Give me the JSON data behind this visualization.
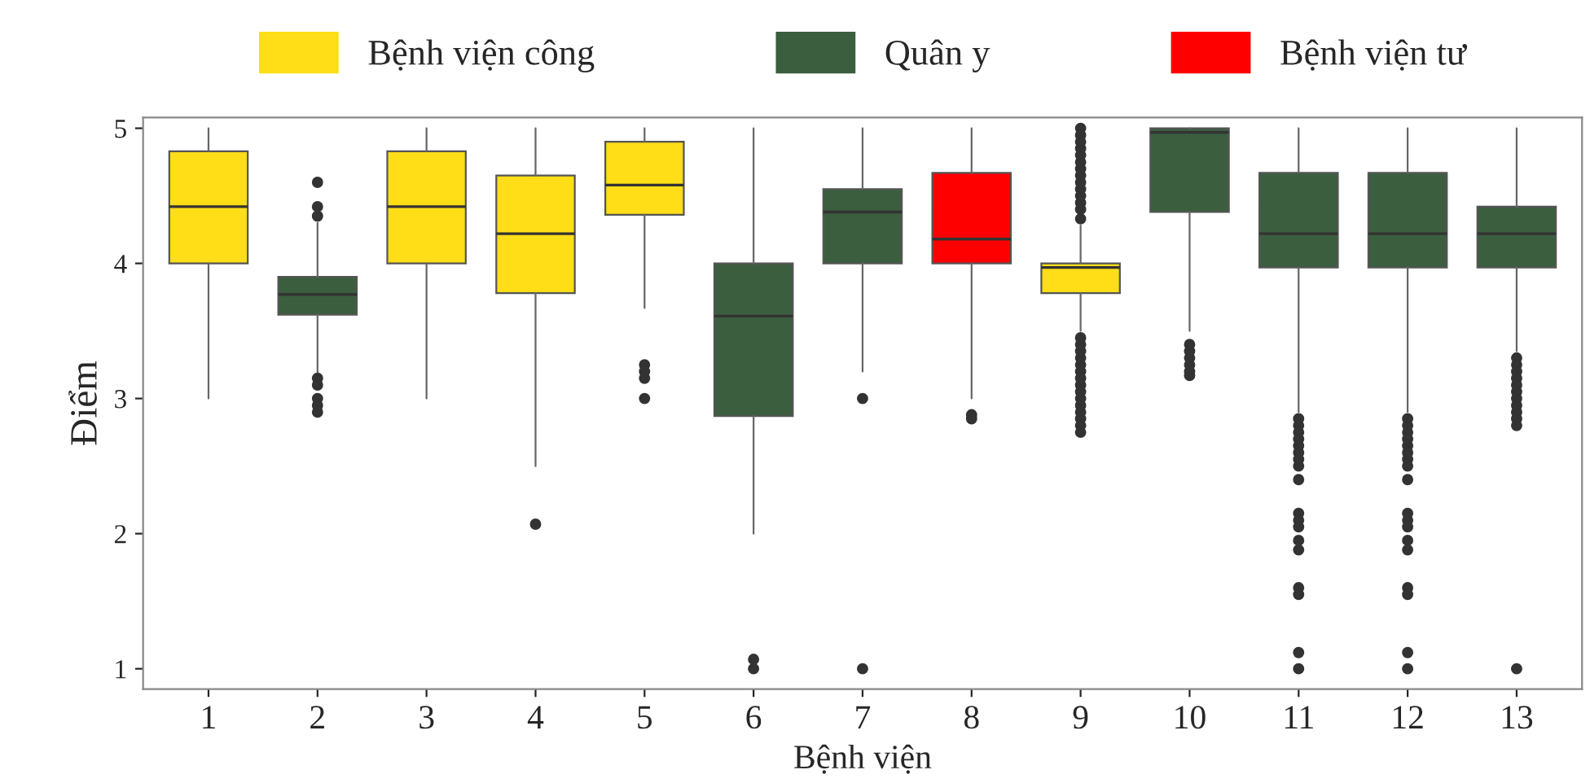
{
  "chart_data": {
    "type": "box",
    "xlabel": "Bệnh viện",
    "ylabel": "Điểm",
    "categories": [
      "1",
      "2",
      "3",
      "4",
      "5",
      "6",
      "7",
      "8",
      "9",
      "10",
      "11",
      "12",
      "13"
    ],
    "ylim": [
      0.85,
      5.08
    ],
    "yticks": [
      1,
      2,
      3,
      4,
      5
    ],
    "grid": false,
    "legend": "top",
    "series": [
      {
        "name": "Bệnh viện công",
        "color": "#ffdd17",
        "boxes": [
          {
            "low": 3.0,
            "q1": 4.0,
            "median": 4.42,
            "q3": 4.83,
            "high": 5.0
          },
          null,
          {
            "low": 3.0,
            "q1": 4.0,
            "median": 4.42,
            "q3": 4.83,
            "high": 5.0
          },
          {
            "low": 2.5,
            "q1": 3.78,
            "median": 4.22,
            "q3": 4.65,
            "high": 5.0,
            "outliers": [
              2.07
            ]
          },
          {
            "low": 3.67,
            "q1": 4.36,
            "median": 4.58,
            "q3": 4.9,
            "high": 5.0,
            "outliers": [
              3.25,
              3.2,
              3.15,
              3.0
            ]
          },
          null,
          null,
          null,
          {
            "low": 3.5,
            "q1": 3.78,
            "median": 3.97,
            "q3": 4.0,
            "high": 4.28,
            "outliers": [
              4.33,
              4.4,
              4.45,
              4.5,
              4.55,
              4.6,
              4.65,
              4.7,
              4.75,
              4.8,
              4.85,
              4.9,
              4.95,
              5.0,
              3.45,
              3.4,
              3.35,
              3.3,
              3.25,
              3.2,
              3.15,
              3.1,
              3.05,
              3.0,
              2.95,
              2.9,
              2.85,
              2.8,
              2.75
            ]
          },
          null,
          null,
          null,
          null
        ]
      },
      {
        "name": "Quân y",
        "color": "#3b5e3f",
        "boxes": [
          null,
          {
            "low": 3.18,
            "q1": 3.62,
            "median": 3.77,
            "q3": 3.9,
            "high": 4.3,
            "outliers": [
              4.35,
              4.42,
              4.6,
              3.15,
              3.1,
              3.0,
              2.95,
              2.9
            ]
          },
          null,
          null,
          null,
          {
            "low": 2.0,
            "q1": 2.87,
            "median": 3.61,
            "q3": 4.0,
            "high": 5.0,
            "outliers": [
              1.07,
              1.0
            ]
          },
          {
            "low": 3.2,
            "q1": 4.0,
            "median": 4.38,
            "q3": 4.55,
            "high": 5.0,
            "outliers": [
              3.0,
              1.0
            ]
          },
          null,
          null,
          {
            "low": 3.5,
            "q1": 4.38,
            "median": 4.97,
            "q3": 5.0,
            "high": 5.0,
            "outliers": [
              3.4,
              3.35,
              3.3,
              3.25,
              3.2,
              3.17
            ]
          },
          {
            "low": 2.9,
            "q1": 3.97,
            "median": 4.22,
            "q3": 4.67,
            "high": 5.0,
            "outliers": [
              2.85,
              2.8,
              2.75,
              2.7,
              2.65,
              2.6,
              2.55,
              2.5,
              2.4,
              2.15,
              2.1,
              2.05,
              1.95,
              1.88,
              1.6,
              1.55,
              1.12,
              1.0
            ]
          },
          {
            "low": 2.9,
            "q1": 3.97,
            "median": 4.22,
            "q3": 4.67,
            "high": 5.0,
            "outliers": [
              2.85,
              2.8,
              2.75,
              2.7,
              2.65,
              2.6,
              2.55,
              2.5,
              2.4,
              2.15,
              2.1,
              2.05,
              1.95,
              1.88,
              1.6,
              1.55,
              1.12,
              1.0
            ]
          },
          {
            "low": 3.35,
            "q1": 3.97,
            "median": 4.22,
            "q3": 4.42,
            "high": 5.0,
            "outliers": [
              3.3,
              3.25,
              3.2,
              3.15,
              3.1,
              3.05,
              3.0,
              2.95,
              2.9,
              2.85,
              2.8,
              1.0
            ]
          }
        ]
      },
      {
        "name": "Bệnh viện tư",
        "color": "#ff0000",
        "boxes": [
          null,
          null,
          null,
          null,
          null,
          null,
          null,
          {
            "low": 3.0,
            "q1": 4.0,
            "median": 4.18,
            "q3": 4.67,
            "high": 5.0,
            "outliers": [
              2.88,
              2.85
            ]
          },
          null,
          null,
          null,
          null,
          null
        ]
      }
    ]
  }
}
